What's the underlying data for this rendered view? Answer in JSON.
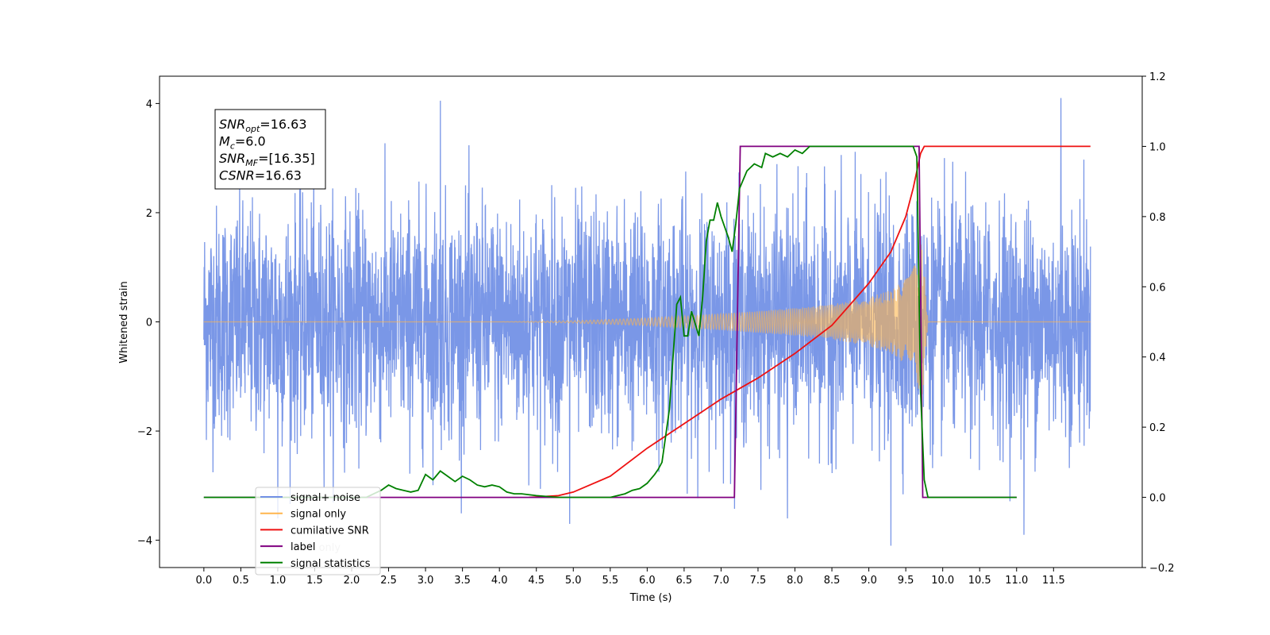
{
  "chart_data": {
    "type": "line",
    "title": "",
    "xlabel": "Time (s)",
    "ylabel": "Whitened strain",
    "xlim": [
      -0.6,
      12.7
    ],
    "ylim": [
      -4.5,
      4.5
    ],
    "y2lim": [
      -0.2,
      1.2
    ],
    "grid": false,
    "x_ticks": [
      "0.0",
      "0.5",
      "1.0",
      "1.5",
      "2.0",
      "2.5",
      "3.0",
      "3.5",
      "4.0",
      "4.5",
      "5.0",
      "5.5",
      "6.0",
      "6.5",
      "7.0",
      "7.5",
      "8.0",
      "8.5",
      "9.0",
      "9.5",
      "10.0",
      "10.5",
      "11.0",
      "11.5"
    ],
    "y_ticks": [
      "−4",
      "−2",
      "0",
      "2",
      "4"
    ],
    "y2_ticks": [
      "−0.2",
      "0.0",
      "0.2",
      "0.4",
      "0.6",
      "0.8",
      "1.0",
      "1.2"
    ],
    "annotation": {
      "lines": [
        {
          "base": "SNR",
          "sub": "opt",
          "rest": "=16.63"
        },
        {
          "base": "M",
          "sub": "c",
          "rest": "=6.0"
        },
        {
          "base": "SNR",
          "sub": "MF",
          "rest": "=[16.35]"
        },
        {
          "base": "CSNR",
          "sub": "",
          "rest": "=16.63"
        }
      ]
    },
    "legend": {
      "position": "lower-left",
      "entries": [
        {
          "label": "signal+ noise",
          "color": "#7391e6"
        },
        {
          "label": "signal only",
          "color": "#ffb54d"
        },
        {
          "label": "cumilative SNR",
          "color": "#ee1111"
        },
        {
          "label": "label",
          "color": "#800080"
        },
        {
          "label": "signal statistics",
          "color": "#008000"
        }
      ],
      "background_text": "label only"
    },
    "series": [
      {
        "name": "signal+ noise",
        "axis": "left",
        "color": "#7391e6",
        "description": "whitened noise plus injected chirp, amplitude roughly ±2.5 with spikes to ±4",
        "x_range": [
          0.0,
          12.0
        ],
        "spikes": [
          [
            3.2,
            4.05
          ],
          [
            11.6,
            4.1
          ],
          [
            9.3,
            -4.1
          ],
          [
            1.0,
            -3.6
          ],
          [
            7.9,
            -3.6
          ],
          [
            11.1,
            -3.9
          ],
          [
            4.95,
            -3.7
          ]
        ]
      },
      {
        "name": "signal only",
        "axis": "left",
        "color": "#ffb54d",
        "description": "chirp with amplitude growing until merger at ~9.7 s",
        "envelope": {
          "x": [
            0.0,
            4.0,
            5.0,
            6.0,
            6.5,
            7.0,
            7.5,
            8.0,
            8.5,
            9.0,
            9.3,
            9.5,
            9.65,
            9.72,
            9.8,
            12.0
          ],
          "amp": [
            0.0,
            0.0,
            0.02,
            0.07,
            0.11,
            0.15,
            0.2,
            0.25,
            0.32,
            0.45,
            0.58,
            0.78,
            1.1,
            1.5,
            0.0,
            0.0
          ]
        }
      },
      {
        "name": "cumilative SNR",
        "axis": "right",
        "color": "#ee1111",
        "x": [
          4.4,
          4.8,
          5.0,
          5.5,
          6.0,
          6.5,
          7.0,
          7.5,
          8.0,
          8.5,
          9.0,
          9.3,
          9.5,
          9.6,
          9.7,
          9.75,
          12.0
        ],
        "y": [
          0.0,
          0.005,
          0.015,
          0.06,
          0.14,
          0.21,
          0.28,
          0.34,
          0.41,
          0.49,
          0.61,
          0.7,
          0.8,
          0.88,
          0.98,
          1.0,
          1.0
        ]
      },
      {
        "name": "label",
        "axis": "right",
        "color": "#800080",
        "x": [
          0.0,
          7.18,
          7.26,
          9.68,
          9.73,
          11.0
        ],
        "y": [
          0.0,
          0.0,
          1.0,
          1.0,
          0.0,
          0.0
        ]
      },
      {
        "name": "signal statistics",
        "axis": "right",
        "color": "#008000",
        "x": [
          0.0,
          2.2,
          2.3,
          2.4,
          2.5,
          2.6,
          2.7,
          2.8,
          2.9,
          3.0,
          3.1,
          3.2,
          3.3,
          3.4,
          3.5,
          3.6,
          3.7,
          3.8,
          3.9,
          4.0,
          4.1,
          4.2,
          4.3,
          4.5,
          4.8,
          5.2,
          5.5,
          5.7,
          5.8,
          5.9,
          6.0,
          6.1,
          6.15,
          6.2,
          6.3,
          6.4,
          6.45,
          6.5,
          6.55,
          6.6,
          6.7,
          6.75,
          6.8,
          6.85,
          6.9,
          6.95,
          7.0,
          7.1,
          7.15,
          7.2,
          7.25,
          7.35,
          7.45,
          7.55,
          7.6,
          7.7,
          7.8,
          7.9,
          8.0,
          8.1,
          8.2,
          8.4,
          9.0,
          9.5,
          9.6,
          9.65,
          9.7,
          9.75,
          9.8,
          10.0,
          11.0
        ],
        "y": [
          0.0,
          0.0,
          0.01,
          0.02,
          0.035,
          0.025,
          0.02,
          0.015,
          0.02,
          0.065,
          0.05,
          0.075,
          0.06,
          0.045,
          0.06,
          0.05,
          0.035,
          0.03,
          0.035,
          0.03,
          0.015,
          0.01,
          0.01,
          0.005,
          0.0,
          0.0,
          0.0,
          0.01,
          0.02,
          0.025,
          0.04,
          0.065,
          0.08,
          0.1,
          0.25,
          0.55,
          0.57,
          0.46,
          0.46,
          0.53,
          0.46,
          0.57,
          0.73,
          0.79,
          0.79,
          0.84,
          0.8,
          0.74,
          0.7,
          0.78,
          0.88,
          0.93,
          0.95,
          0.94,
          0.98,
          0.97,
          0.98,
          0.97,
          0.99,
          0.98,
          1.0,
          1.0,
          1.0,
          1.0,
          1.0,
          0.97,
          0.3,
          0.05,
          0.0,
          0.0,
          0.0
        ]
      }
    ]
  }
}
